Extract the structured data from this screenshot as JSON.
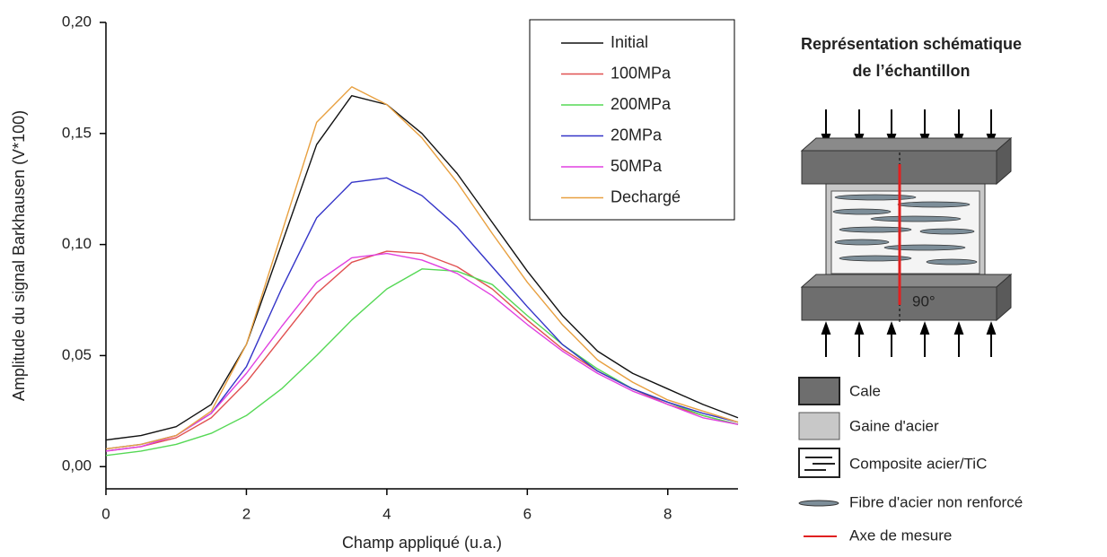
{
  "chart_data": {
    "type": "line",
    "x_label": "Champ appliqué (u.a.)",
    "y_label": "Amplitude du signal Barkhausen (V*100)",
    "x": [
      0,
      0.5,
      1,
      1.5,
      2,
      2.5,
      3,
      3.5,
      4,
      4.5,
      5,
      5.5,
      6,
      6.5,
      7,
      7.5,
      8,
      8.5,
      9
    ],
    "xlim": [
      0,
      9
    ],
    "xticks": [
      0,
      2,
      4,
      6,
      8
    ],
    "ylim": [
      -0.01,
      0.2
    ],
    "yticks": [
      {
        "value": 0,
        "label": "0,00"
      },
      {
        "value": 0.05,
        "label": "0,05"
      },
      {
        "value": 0.1,
        "label": "0,10"
      },
      {
        "value": 0.15,
        "label": "0,15"
      },
      {
        "value": 0.2,
        "label": "0,20"
      }
    ],
    "legend": "upper right",
    "series": [
      {
        "name": "Initial",
        "color": "#111111",
        "values": [
          0.012,
          0.014,
          0.018,
          0.028,
          0.055,
          0.1,
          0.145,
          0.167,
          0.163,
          0.15,
          0.132,
          0.11,
          0.088,
          0.068,
          0.052,
          0.042,
          0.035,
          0.028,
          0.022
        ]
      },
      {
        "name": "100MPa",
        "color": "#e05050",
        "values": [
          0.007,
          0.009,
          0.013,
          0.022,
          0.038,
          0.058,
          0.078,
          0.092,
          0.097,
          0.096,
          0.09,
          0.08,
          0.066,
          0.053,
          0.043,
          0.035,
          0.028,
          0.023,
          0.019
        ]
      },
      {
        "name": "200MPa",
        "color": "#55d855",
        "values": [
          0.005,
          0.007,
          0.01,
          0.015,
          0.023,
          0.035,
          0.05,
          0.066,
          0.08,
          0.089,
          0.088,
          0.082,
          0.068,
          0.055,
          0.044,
          0.035,
          0.029,
          0.023,
          0.019
        ]
      },
      {
        "name": "20MPa",
        "color": "#3434c8",
        "values": [
          0.008,
          0.01,
          0.014,
          0.024,
          0.045,
          0.08,
          0.112,
          0.128,
          0.13,
          0.122,
          0.108,
          0.09,
          0.072,
          0.055,
          0.043,
          0.035,
          0.029,
          0.024,
          0.02
        ]
      },
      {
        "name": "50MPa",
        "color": "#e040e0",
        "values": [
          0.007,
          0.009,
          0.014,
          0.024,
          0.042,
          0.063,
          0.083,
          0.094,
          0.096,
          0.093,
          0.087,
          0.077,
          0.064,
          0.052,
          0.042,
          0.034,
          0.028,
          0.022,
          0.019
        ]
      },
      {
        "name": "Dechargé",
        "color": "#e8a040",
        "values": [
          0.008,
          0.01,
          0.014,
          0.025,
          0.055,
          0.105,
          0.155,
          0.171,
          0.163,
          0.148,
          0.128,
          0.105,
          0.083,
          0.064,
          0.048,
          0.038,
          0.03,
          0.025,
          0.02
        ]
      }
    ]
  },
  "schematic": {
    "title_lines": [
      "Représentation schématique",
      "de l’échantillon"
    ],
    "angle_label": "90°",
    "legend": [
      "Cale",
      "Gaine d'acier",
      "Composite acier/TiC",
      "Fibre d'acier non renforcé",
      "Axe de mesure"
    ]
  }
}
